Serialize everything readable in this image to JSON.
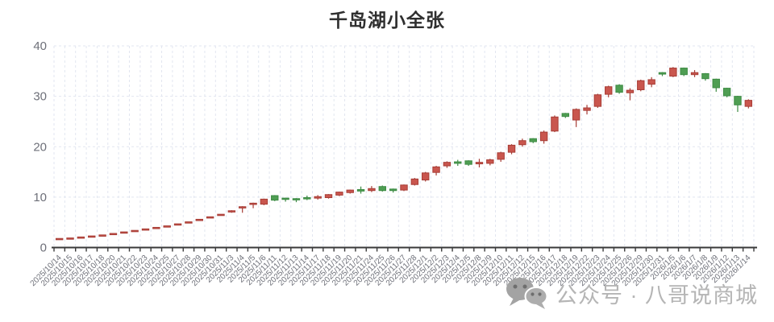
{
  "title": "千岛湖小全张",
  "watermark": {
    "text": "公众号 · 八哥说商城",
    "icon": "wechat-icon"
  },
  "chart_data": {
    "type": "candlestick",
    "title": "千岛湖小全张",
    "xlabel": "",
    "ylabel": "",
    "ylim": [
      0,
      40
    ],
    "yticks": [
      0,
      10,
      20,
      30,
      40
    ],
    "grid": true,
    "legend_position": "none",
    "x_label_rotate": 45,
    "up_color": "#c9564e",
    "up_border": "#a73d36",
    "down_color": "#4f9e53",
    "down_border": "#3d8b44",
    "ohlc_format": [
      "open",
      "close",
      "low",
      "high"
    ],
    "categories": [
      "2025/10/14",
      "2025/10/15",
      "2025/10/16",
      "2025/10/17",
      "2025/10/18",
      "2025/10/20",
      "2025/10/21",
      "2025/10/22",
      "2025/10/23",
      "2025/10/24",
      "2025/10/25",
      "2025/10/27",
      "2025/10/28",
      "2025/10/29",
      "2025/10/30",
      "2025/10/31",
      "2025/11/3",
      "2025/11/4",
      "2025/11/5",
      "2025/11/6",
      "2025/11/11",
      "2025/11/12",
      "2025/11/13",
      "2025/11/14",
      "2025/11/17",
      "2025/11/18",
      "2025/11/19",
      "2025/11/20",
      "2025/11/21",
      "2025/11/24",
      "2025/11/25",
      "2025/11/26",
      "2025/11/27",
      "2025/11/28",
      "2025/12/1",
      "2025/12/2",
      "2025/12/3",
      "2025/12/4",
      "2025/12/5",
      "2025/12/8",
      "2025/12/9",
      "2025/12/10",
      "2025/12/11",
      "2025/12/12",
      "2025/12/15",
      "2025/12/16",
      "2025/12/17",
      "2025/12/18",
      "2025/12/19",
      "2025/12/22",
      "2025/12/23",
      "2025/12/24",
      "2025/12/25",
      "2025/12/26",
      "2025/12/29",
      "2025/12/30",
      "2025/12/31",
      "2026/1/5",
      "2026/1/6",
      "2026/1/7",
      "2026/1/8",
      "2026/1/9",
      "2026/1/12",
      "2026/1/13",
      "2026/1/14"
    ],
    "ohlc": [
      [
        1.8,
        1.8,
        1.8,
        1.8
      ],
      [
        1.9,
        1.9,
        1.9,
        1.9
      ],
      [
        2.1,
        2.1,
        2.1,
        2.1
      ],
      [
        2.3,
        2.3,
        2.3,
        2.3
      ],
      [
        2.5,
        2.5,
        2.5,
        2.5
      ],
      [
        2.8,
        2.8,
        2.8,
        2.8
      ],
      [
        3.1,
        3.1,
        3.1,
        3.1
      ],
      [
        3.4,
        3.4,
        3.4,
        3.4
      ],
      [
        3.7,
        3.7,
        3.7,
        3.7
      ],
      [
        4.0,
        4.0,
        4.0,
        4.0
      ],
      [
        4.3,
        4.3,
        4.3,
        4.3
      ],
      [
        4.7,
        4.7,
        4.7,
        4.7
      ],
      [
        5.1,
        5.1,
        5.1,
        5.1
      ],
      [
        5.6,
        5.6,
        5.6,
        5.6
      ],
      [
        6.1,
        6.1,
        6.1,
        6.1
      ],
      [
        6.6,
        6.6,
        6.6,
        6.6
      ],
      [
        7.2,
        7.3,
        6.9,
        7.4
      ],
      [
        8.0,
        8.1,
        6.9,
        8.2
      ],
      [
        8.7,
        8.8,
        7.8,
        8.9
      ],
      [
        8.6,
        9.6,
        8.4,
        9.7
      ],
      [
        10.3,
        9.4,
        9.2,
        10.4
      ],
      [
        9.8,
        9.6,
        9.1,
        9.9
      ],
      [
        9.7,
        9.5,
        9.0,
        9.8
      ],
      [
        9.9,
        9.7,
        9.4,
        10.3
      ],
      [
        9.8,
        10.1,
        9.5,
        10.4
      ],
      [
        9.9,
        10.5,
        9.7,
        10.6
      ],
      [
        10.4,
        11.0,
        10.2,
        11.1
      ],
      [
        10.9,
        11.4,
        10.7,
        11.5
      ],
      [
        11.5,
        11.2,
        10.7,
        12.1
      ],
      [
        11.3,
        11.7,
        11.0,
        12.2
      ],
      [
        12.1,
        11.3,
        11.1,
        12.3
      ],
      [
        11.6,
        11.3,
        10.9,
        11.7
      ],
      [
        11.4,
        12.4,
        11.2,
        12.5
      ],
      [
        12.5,
        13.6,
        12.3,
        13.8
      ],
      [
        13.4,
        14.8,
        13.1,
        15.0
      ],
      [
        14.9,
        16.0,
        14.3,
        16.2
      ],
      [
        16.2,
        16.9,
        15.8,
        17.1
      ],
      [
        17.0,
        16.7,
        16.2,
        17.4
      ],
      [
        17.2,
        16.5,
        16.2,
        17.3
      ],
      [
        16.6,
        16.9,
        15.9,
        17.6
      ],
      [
        16.7,
        17.4,
        16.3,
        17.6
      ],
      [
        17.5,
        18.8,
        17.0,
        19.0
      ],
      [
        18.9,
        20.3,
        18.5,
        20.5
      ],
      [
        20.4,
        21.2,
        20.0,
        21.6
      ],
      [
        21.6,
        21.0,
        20.7,
        21.7
      ],
      [
        21.2,
        22.9,
        20.6,
        23.2
      ],
      [
        23.1,
        25.9,
        22.9,
        26.2
      ],
      [
        26.6,
        26.0,
        25.7,
        26.7
      ],
      [
        25.3,
        27.4,
        23.9,
        27.6
      ],
      [
        27.2,
        27.7,
        26.4,
        28.3
      ],
      [
        28.0,
        30.3,
        27.7,
        30.5
      ],
      [
        30.4,
        31.9,
        29.8,
        32.1
      ],
      [
        32.2,
        30.8,
        30.5,
        32.4
      ],
      [
        30.7,
        31.2,
        29.2,
        31.6
      ],
      [
        31.3,
        33.1,
        31.0,
        33.3
      ],
      [
        32.4,
        33.3,
        31.8,
        33.8
      ],
      [
        34.7,
        34.4,
        34.0,
        34.8
      ],
      [
        34.0,
        35.6,
        33.8,
        35.8
      ],
      [
        35.6,
        34.3,
        34.0,
        35.7
      ],
      [
        34.3,
        34.7,
        33.8,
        35.2
      ],
      [
        34.5,
        33.5,
        33.1,
        34.6
      ],
      [
        33.4,
        31.7,
        30.9,
        33.5
      ],
      [
        31.6,
        30.1,
        29.8,
        31.7
      ],
      [
        30.0,
        28.3,
        26.9,
        30.1
      ],
      [
        28.0,
        29.2,
        27.6,
        29.4
      ]
    ]
  }
}
